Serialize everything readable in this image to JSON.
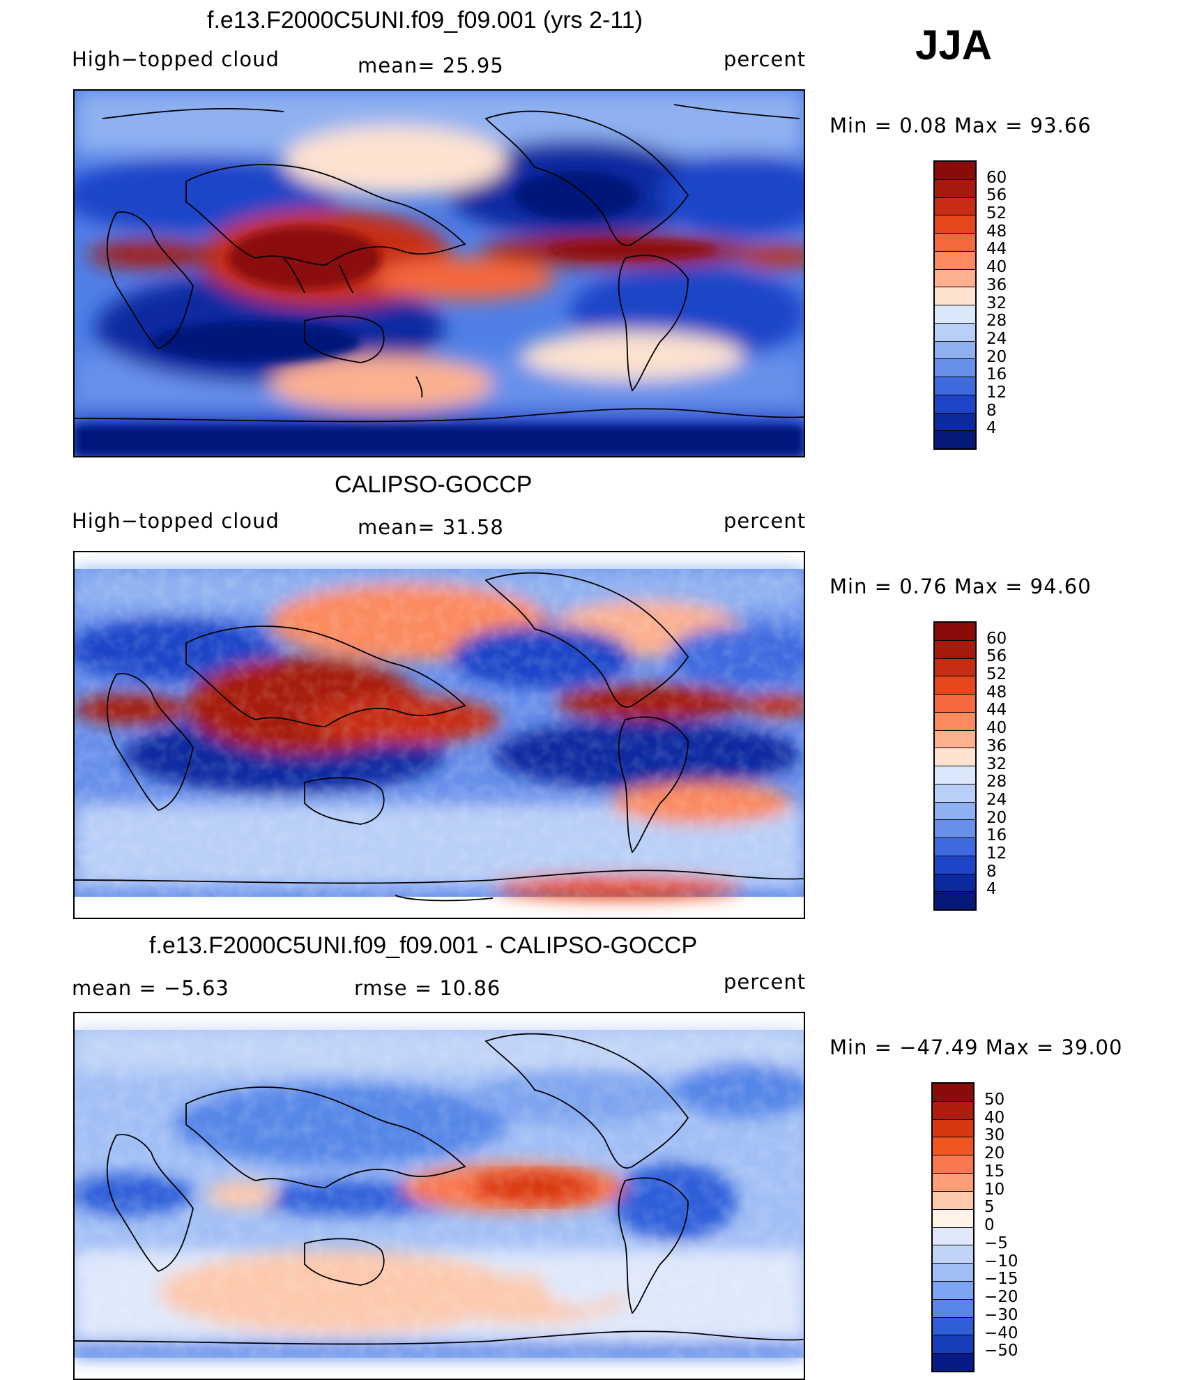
{
  "season": "JJA",
  "panels": [
    {
      "title": "f.e13.F2000C5UNI.f09_f09.001 (yrs 2-11)",
      "left_label": "High−topped cloud",
      "stat1": "mean=   25.95",
      "stat2": "",
      "units": "percent",
      "minmax": "Min  =     0.08  Max  =    93.66"
    },
    {
      "title": "CALIPSO-GOCCP",
      "left_label": "High−topped cloud",
      "stat1": "mean=   31.58",
      "stat2": "",
      "units": "percent",
      "minmax": "Min  =     0.76  Max  =    94.60"
    },
    {
      "title": "f.e13.F2000C5UNI.f09_f09.001 - CALIPSO-GOCCP",
      "left_label": "",
      "stat1": "mean  =    −5.63",
      "stat2": "rmse  =    10.86",
      "units": "percent",
      "minmax": "Min  = −47.49  Max  =    39.00"
    }
  ],
  "colorbars": {
    "abs_labels": [
      "60",
      "56",
      "52",
      "48",
      "44",
      "40",
      "36",
      "32",
      "28",
      "24",
      "20",
      "16",
      "12",
      "8",
      "4"
    ],
    "abs_colors": [
      "#8b0a0a",
      "#a61a0d",
      "#c62d12",
      "#e6481c",
      "#f7683e",
      "#fb8a5f",
      "#fcb090",
      "#fde2d0",
      "#dbe7fa",
      "#b9cff7",
      "#8fb1f1",
      "#6890eb",
      "#3f6bdf",
      "#1e45c8",
      "#0c2aa0",
      "#05197a"
    ],
    "diff_labels": [
      "50",
      "40",
      "30",
      "20",
      "15",
      "10",
      "5",
      "0",
      "−5",
      "−10",
      "−15",
      "−20",
      "−30",
      "−40",
      "−50"
    ],
    "diff_colors": [
      "#8b0a0a",
      "#b01c0e",
      "#d8380f",
      "#f0561f",
      "#f97850",
      "#fb9d77",
      "#fcc9ad",
      "#fff2e6",
      "#dfe8fb",
      "#c1d4f8",
      "#a2bff5",
      "#7ea5ef",
      "#5786e8",
      "#2f5ed9",
      "#173ebb",
      "#061b86"
    ]
  }
}
